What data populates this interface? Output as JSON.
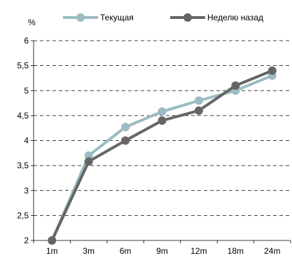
{
  "chart_data": {
    "type": "line",
    "ylabel": "%",
    "categories": [
      "1m",
      "3m",
      "6m",
      "9m",
      "12m",
      "18m",
      "24m"
    ],
    "ylim": [
      2,
      6
    ],
    "yticks": [
      "2",
      "2,5",
      "3",
      "3,5",
      "4",
      "4,5",
      "5",
      "5,5",
      "6"
    ],
    "grid": "horizontal-dashed",
    "legend_position": "top",
    "series": [
      {
        "name": "Текущая",
        "color": "#9bbcc2",
        "values": [
          2.0,
          3.7,
          4.27,
          4.58,
          4.8,
          5.0,
          5.3
        ]
      },
      {
        "name": "Неделю назад",
        "color": "#666666",
        "values": [
          2.0,
          3.58,
          4.0,
          4.4,
          4.6,
          5.1,
          5.4
        ]
      }
    ]
  }
}
